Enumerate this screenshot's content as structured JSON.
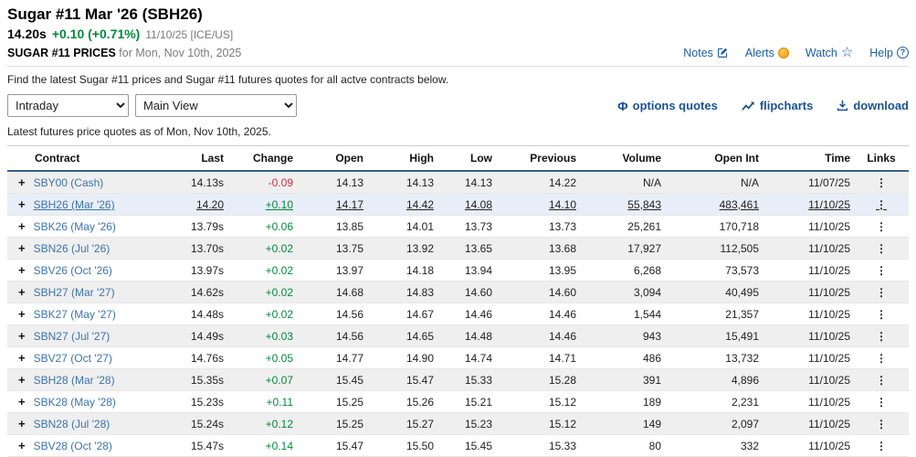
{
  "header": {
    "title": "Sugar #11 Mar '26 (SBH26)",
    "price": "14.20s",
    "change": "+0.10 (+0.71%)",
    "quote_meta": "11/10/25 [ICE/US]",
    "prices_label": "SUGAR #11 PRICES",
    "prices_date": "for Mon, Nov 10th, 2025",
    "links": {
      "notes": "Notes",
      "alerts": "Alerts",
      "watch": "Watch",
      "help": "Help"
    }
  },
  "description": "Find the latest Sugar #11 prices and Sugar #11 futures quotes for all actve contracts below.",
  "controls": {
    "frequency_select": "Intraday",
    "view_select": "Main View",
    "options_quotes_label": "options quotes",
    "flipcharts_label": "flipcharts",
    "download_label": "download"
  },
  "as_of_note": "Latest futures price quotes as of Mon, Nov 10th, 2025.",
  "icons": {
    "expand": "+",
    "links_menu": "⋮",
    "star": "☆",
    "help": "?",
    "options_quotes": "Φ"
  },
  "colors": {
    "accent_blue": "#1b5da0",
    "action_blue": "#1a5296",
    "positive_green": "#008a3c",
    "negative_red": "#d22e3c",
    "alert_orange": "#f09a10",
    "highlight_row": "#e8eef7",
    "stripe_row": "#efefef"
  },
  "table": {
    "columns": [
      "Contract",
      "Last",
      "Change",
      "Open",
      "High",
      "Low",
      "Previous",
      "Volume",
      "Open Int",
      "Time",
      "Links"
    ],
    "rows": [
      {
        "contract": "SBY00 (Cash)",
        "last": "14.13s",
        "change": "-0.09",
        "open": "14.13",
        "high": "14.13",
        "low": "14.13",
        "previous": "14.22",
        "volume": "N/A",
        "open_int": "N/A",
        "time": "11/07/25",
        "highlight": false
      },
      {
        "contract": "SBH26 (Mar '26)",
        "last": "14.20",
        "change": "+0.10",
        "open": "14.17",
        "high": "14.42",
        "low": "14.08",
        "previous": "14.10",
        "volume": "55,843",
        "open_int": "483,461",
        "time": "11/10/25",
        "highlight": true
      },
      {
        "contract": "SBK26 (May '26)",
        "last": "13.79s",
        "change": "+0.06",
        "open": "13.85",
        "high": "14.01",
        "low": "13.73",
        "previous": "13.73",
        "volume": "25,261",
        "open_int": "170,718",
        "time": "11/10/25",
        "highlight": false
      },
      {
        "contract": "SBN26 (Jul '26)",
        "last": "13.70s",
        "change": "+0.02",
        "open": "13.75",
        "high": "13.92",
        "low": "13.65",
        "previous": "13.68",
        "volume": "17,927",
        "open_int": "112,505",
        "time": "11/10/25",
        "highlight": false
      },
      {
        "contract": "SBV26 (Oct '26)",
        "last": "13.97s",
        "change": "+0.02",
        "open": "13.97",
        "high": "14.18",
        "low": "13.94",
        "previous": "13.95",
        "volume": "6,268",
        "open_int": "73,573",
        "time": "11/10/25",
        "highlight": false
      },
      {
        "contract": "SBH27 (Mar '27)",
        "last": "14.62s",
        "change": "+0.02",
        "open": "14.68",
        "high": "14.83",
        "low": "14.60",
        "previous": "14.60",
        "volume": "3,094",
        "open_int": "40,495",
        "time": "11/10/25",
        "highlight": false
      },
      {
        "contract": "SBK27 (May '27)",
        "last": "14.48s",
        "change": "+0.02",
        "open": "14.56",
        "high": "14.67",
        "low": "14.46",
        "previous": "14.46",
        "volume": "1,544",
        "open_int": "21,357",
        "time": "11/10/25",
        "highlight": false
      },
      {
        "contract": "SBN27 (Jul '27)",
        "last": "14.49s",
        "change": "+0.03",
        "open": "14.56",
        "high": "14.65",
        "low": "14.48",
        "previous": "14.46",
        "volume": "943",
        "open_int": "15,491",
        "time": "11/10/25",
        "highlight": false
      },
      {
        "contract": "SBV27 (Oct '27)",
        "last": "14.76s",
        "change": "+0.05",
        "open": "14.77",
        "high": "14.90",
        "low": "14.74",
        "previous": "14.71",
        "volume": "486",
        "open_int": "13,732",
        "time": "11/10/25",
        "highlight": false
      },
      {
        "contract": "SBH28 (Mar '28)",
        "last": "15.35s",
        "change": "+0.07",
        "open": "15.45",
        "high": "15.47",
        "low": "15.33",
        "previous": "15.28",
        "volume": "391",
        "open_int": "4,896",
        "time": "11/10/25",
        "highlight": false
      },
      {
        "contract": "SBK28 (May '28)",
        "last": "15.23s",
        "change": "+0.11",
        "open": "15.25",
        "high": "15.26",
        "low": "15.21",
        "previous": "15.12",
        "volume": "189",
        "open_int": "2,231",
        "time": "11/10/25",
        "highlight": false
      },
      {
        "contract": "SBN28 (Jul '28)",
        "last": "15.24s",
        "change": "+0.12",
        "open": "15.25",
        "high": "15.27",
        "low": "15.23",
        "previous": "15.12",
        "volume": "149",
        "open_int": "2,097",
        "time": "11/10/25",
        "highlight": false
      },
      {
        "contract": "SBV28 (Oct '28)",
        "last": "15.47s",
        "change": "+0.14",
        "open": "15.47",
        "high": "15.50",
        "low": "15.45",
        "previous": "15.33",
        "volume": "80",
        "open_int": "332",
        "time": "11/10/25",
        "highlight": false
      }
    ]
  }
}
